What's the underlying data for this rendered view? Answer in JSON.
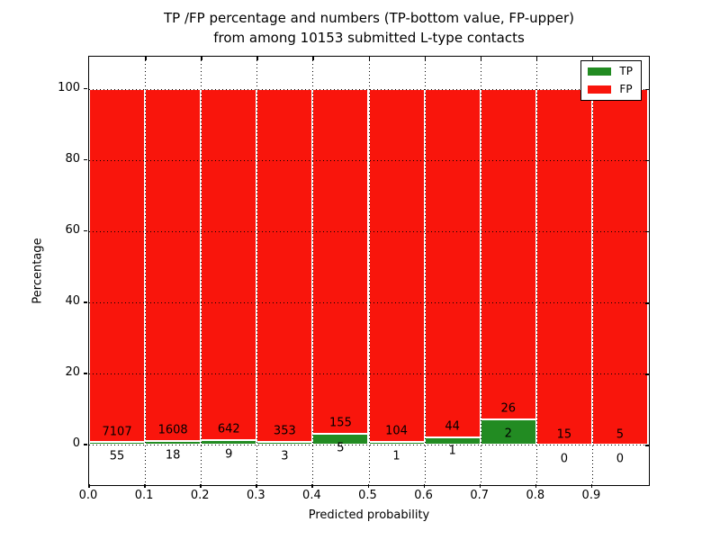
{
  "title": {
    "line1": "TP /FP percentage and numbers (TP-bottom value, FP-upper)",
    "line2": "from among 10153 submitted L-type contacts"
  },
  "axes": {
    "xlabel": "Predicted probability",
    "ylabel": "Percentage",
    "x_tick_labels": [
      "0.0",
      "0.1",
      "0.2",
      "0.3",
      "0.4",
      "0.5",
      "0.6",
      "0.7",
      "0.8",
      "0.9"
    ],
    "y_tick_labels": [
      "0",
      "20",
      "40",
      "60",
      "80",
      "100"
    ]
  },
  "legend": {
    "items": [
      {
        "label": "TP",
        "color": "#228b22"
      },
      {
        "label": "FP",
        "color": "#f9150c"
      }
    ],
    "position": "upper right"
  },
  "chart_data": {
    "type": "bar",
    "stacked": true,
    "title": "TP /FP percentage and numbers (TP-bottom value, FP-upper) from among 10153 submitted L-type contacts",
    "xlabel": "Predicted probability",
    "ylabel": "Percentage",
    "total_contacts": 10153,
    "bin_starts": [
      0.0,
      0.1,
      0.2,
      0.3,
      0.4,
      0.5,
      0.6,
      0.7,
      0.8,
      0.9
    ],
    "bin_width": 0.1,
    "series": [
      {
        "name": "TP",
        "color": "#228b22",
        "counts": [
          55,
          18,
          9,
          3,
          5,
          1,
          1,
          2,
          0,
          0
        ],
        "note": "bottom segment, percentage of bin"
      },
      {
        "name": "FP",
        "color": "#f9150c",
        "counts": [
          7107,
          1608,
          642,
          353,
          155,
          104,
          44,
          26,
          15,
          5
        ],
        "note": "upper segment, percentage of bin"
      }
    ],
    "bar_total_percent": 100,
    "xlim": [
      0,
      1
    ],
    "ylim": [
      -11,
      109
    ],
    "x_gridlines": [
      0.1,
      0.2,
      0.3,
      0.4,
      0.5,
      0.6,
      0.7,
      0.8,
      0.9
    ],
    "y_gridlines": [
      0,
      20,
      40,
      60,
      80,
      100
    ],
    "grid": true,
    "grid_style": "dotted",
    "bar_edge_color": "#ffffff",
    "fp_label_offset_percent": 3,
    "tp_label_offset_percent": -4,
    "legend_position": "upper right"
  }
}
